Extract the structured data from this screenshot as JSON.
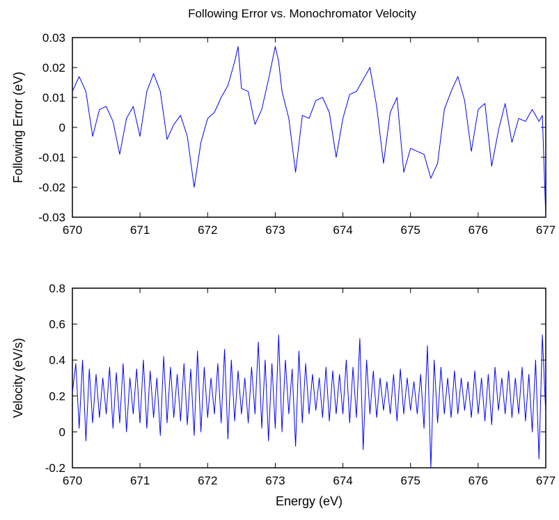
{
  "figure": {
    "title": "Following Error vs. Monochromator Velocity",
    "line_color": "#0000ff"
  },
  "chart_data": [
    {
      "type": "line",
      "title": "Following Error vs. Monochromator Velocity",
      "xlabel": "",
      "ylabel": "Following Error (eV)",
      "xlim": [
        670,
        677
      ],
      "ylim": [
        -0.03,
        0.03
      ],
      "xticks": [
        670,
        671,
        672,
        673,
        674,
        675,
        676,
        677
      ],
      "xtick_labels": [
        "670",
        "671",
        "672",
        "673",
        "674",
        "675",
        "676",
        "677"
      ],
      "yticks": [
        -0.03,
        -0.02,
        -0.01,
        0,
        0.01,
        0.02,
        0.03
      ],
      "ytick_labels": [
        "-0.03",
        "-0.02",
        "-0.01",
        "0",
        "0.01",
        "0.02",
        "0.03"
      ],
      "grid": false,
      "series": [
        {
          "color": "#0000ff",
          "x": [
            670.0,
            670.1,
            670.2,
            670.3,
            670.4,
            670.5,
            670.6,
            670.7,
            670.8,
            670.9,
            671.0,
            671.1,
            671.2,
            671.3,
            671.4,
            671.5,
            671.6,
            671.7,
            671.8,
            671.9,
            672.0,
            672.1,
            672.2,
            672.3,
            672.4,
            672.45,
            672.5,
            672.6,
            672.7,
            672.8,
            672.9,
            673.0,
            673.05,
            673.1,
            673.2,
            673.3,
            673.4,
            673.5,
            673.6,
            673.7,
            673.8,
            673.9,
            674.0,
            674.1,
            674.2,
            674.3,
            674.4,
            674.5,
            674.6,
            674.7,
            674.8,
            674.9,
            675.0,
            675.1,
            675.2,
            675.3,
            675.4,
            675.5,
            675.6,
            675.7,
            675.8,
            675.9,
            676.0,
            676.1,
            676.2,
            676.3,
            676.4,
            676.5,
            676.6,
            676.7,
            676.8,
            676.9,
            676.95,
            677.0
          ],
          "y": [
            0.012,
            0.017,
            0.012,
            -0.003,
            0.006,
            0.007,
            0.002,
            -0.009,
            0.003,
            0.007,
            -0.003,
            0.012,
            0.018,
            0.012,
            -0.004,
            0.001,
            0.004,
            -0.003,
            -0.02,
            -0.005,
            0.003,
            0.005,
            0.01,
            0.014,
            0.022,
            0.027,
            0.013,
            0.012,
            0.001,
            0.006,
            0.016,
            0.027,
            0.022,
            0.012,
            0.003,
            -0.015,
            0.004,
            0.003,
            0.009,
            0.01,
            0.005,
            -0.01,
            0.003,
            0.011,
            0.012,
            0.016,
            0.02,
            0.007,
            -0.012,
            0.005,
            0.01,
            -0.015,
            -0.007,
            -0.008,
            -0.009,
            -0.017,
            -0.012,
            0.006,
            0.012,
            0.017,
            0.009,
            -0.008,
            0.006,
            0.008,
            -0.013,
            -0.001,
            0.008,
            -0.005,
            0.003,
            0.002,
            0.006,
            0.002,
            0.004,
            -0.03
          ]
        }
      ]
    },
    {
      "type": "line",
      "title": "",
      "xlabel": "Energy (eV)",
      "ylabel": "Velocity (eV/s)",
      "xlim": [
        670,
        677
      ],
      "ylim": [
        -0.2,
        0.8
      ],
      "xticks": [
        670,
        671,
        672,
        673,
        674,
        675,
        676,
        677
      ],
      "xtick_labels": [
        "670",
        "671",
        "672",
        "673",
        "674",
        "675",
        "676",
        "677"
      ],
      "yticks": [
        -0.2,
        0,
        0.2,
        0.4,
        0.6,
        0.8
      ],
      "ytick_labels": [
        "-0.2",
        "0",
        "0.2",
        "0.4",
        "0.6",
        "0.8"
      ],
      "grid": false,
      "series": [
        {
          "color": "#0000ff",
          "x": [
            670.0,
            670.05,
            670.1,
            670.15,
            670.2,
            670.25,
            670.3,
            670.35,
            670.4,
            670.45,
            670.5,
            670.55,
            670.6,
            670.65,
            670.7,
            670.75,
            670.8,
            670.85,
            670.9,
            670.95,
            671.0,
            671.05,
            671.1,
            671.15,
            671.2,
            671.25,
            671.3,
            671.35,
            671.4,
            671.45,
            671.5,
            671.55,
            671.6,
            671.65,
            671.7,
            671.75,
            671.8,
            671.85,
            671.9,
            671.95,
            672.0,
            672.05,
            672.1,
            672.15,
            672.2,
            672.25,
            672.3,
            672.35,
            672.4,
            672.45,
            672.5,
            672.55,
            672.6,
            672.65,
            672.7,
            672.75,
            672.8,
            672.85,
            672.9,
            672.95,
            673.0,
            673.05,
            673.1,
            673.15,
            673.2,
            673.25,
            673.3,
            673.35,
            673.4,
            673.45,
            673.5,
            673.55,
            673.6,
            673.65,
            673.7,
            673.75,
            673.8,
            673.85,
            673.9,
            673.95,
            674.0,
            674.05,
            674.1,
            674.15,
            674.2,
            674.25,
            674.3,
            674.35,
            674.4,
            674.45,
            674.5,
            674.55,
            674.6,
            674.65,
            674.7,
            674.75,
            674.8,
            674.85,
            674.9,
            674.95,
            675.0,
            675.05,
            675.1,
            675.15,
            675.2,
            675.25,
            675.3,
            675.35,
            675.4,
            675.45,
            675.5,
            675.55,
            675.6,
            675.65,
            675.7,
            675.75,
            675.8,
            675.85,
            675.9,
            675.95,
            676.0,
            676.05,
            676.1,
            676.15,
            676.2,
            676.25,
            676.3,
            676.35,
            676.4,
            676.45,
            676.5,
            676.55,
            676.6,
            676.65,
            676.7,
            676.75,
            676.8,
            676.85,
            676.9,
            676.95,
            677.0
          ],
          "y": [
            0.22,
            0.38,
            0.02,
            0.4,
            -0.05,
            0.35,
            0.05,
            0.32,
            0.08,
            0.3,
            0.1,
            0.36,
            0.02,
            0.33,
            0.05,
            0.38,
            0.0,
            0.3,
            0.1,
            0.35,
            0.05,
            0.4,
            0.02,
            0.34,
            0.08,
            0.3,
            -0.02,
            0.42,
            0.05,
            0.36,
            0.08,
            0.32,
            0.06,
            0.38,
            0.04,
            0.35,
            -0.02,
            0.45,
            0.0,
            0.36,
            0.08,
            0.3,
            0.1,
            0.38,
            0.05,
            0.46,
            -0.04,
            0.4,
            0.06,
            0.34,
            0.1,
            0.3,
            0.05,
            0.36,
            0.1,
            0.5,
            0.02,
            0.4,
            -0.05,
            0.38,
            0.02,
            0.54,
            0.0,
            0.4,
            0.1,
            0.35,
            -0.08,
            0.45,
            0.05,
            0.38,
            0.1,
            0.32,
            0.12,
            0.3,
            0.08,
            0.36,
            0.06,
            0.34,
            0.1,
            0.32,
            0.1,
            0.4,
            0.05,
            0.36,
            0.08,
            0.52,
            -0.1,
            0.4,
            0.1,
            0.34,
            0.08,
            0.3,
            0.12,
            0.28,
            0.1,
            0.32,
            0.06,
            0.35,
            0.1,
            0.3,
            0.12,
            0.28,
            0.1,
            0.32,
            0.02,
            0.48,
            -0.2,
            0.4,
            0.05,
            0.36,
            0.1,
            0.3,
            0.08,
            0.34,
            0.1,
            0.3,
            0.12,
            0.28,
            0.08,
            0.34,
            0.1,
            0.3,
            0.06,
            0.32,
            0.04,
            0.36,
            0.12,
            0.3,
            0.1,
            0.34,
            0.08,
            0.3,
            0.1,
            0.36,
            0.06,
            0.32,
            0.0,
            0.4,
            -0.15,
            0.54,
            0.1
          ]
        }
      ]
    }
  ]
}
